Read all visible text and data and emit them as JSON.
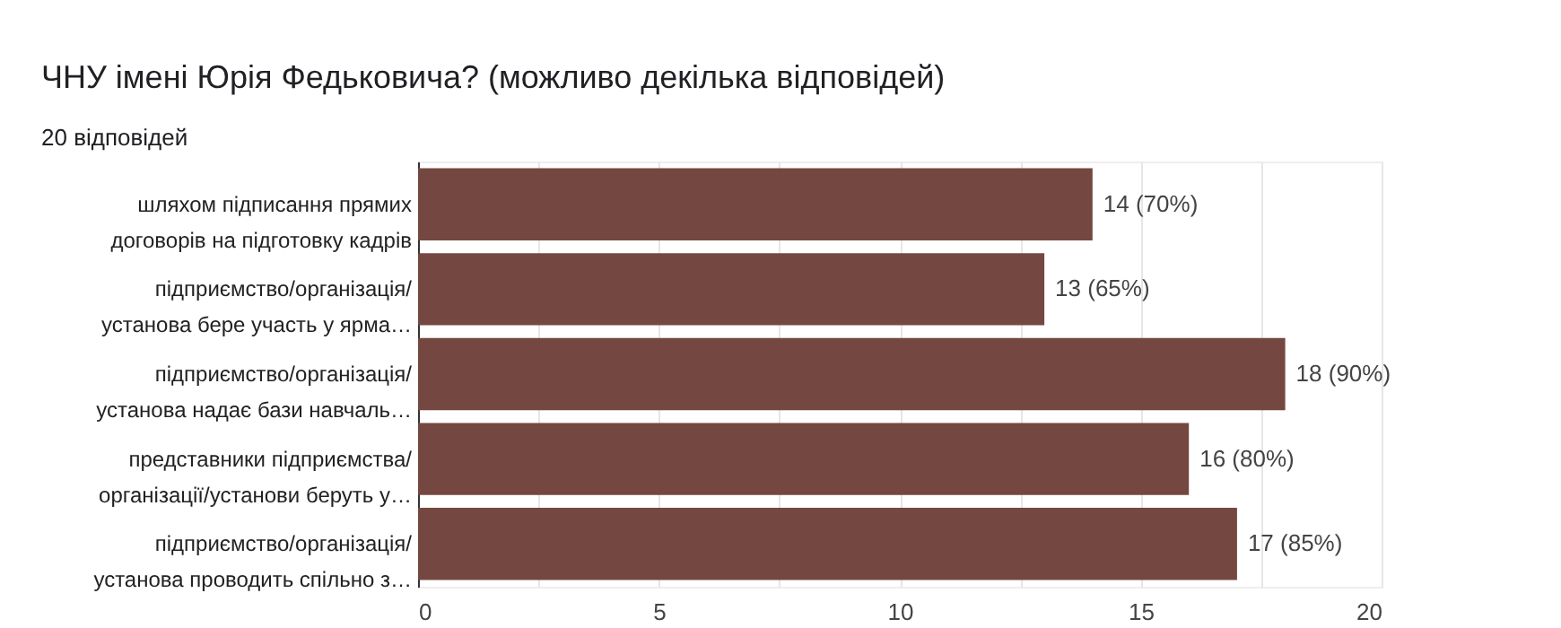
{
  "chart_data": {
    "type": "bar",
    "orientation": "horizontal",
    "title": "ЧНУ імені Юрія Федьковича? (можливо декілька відповідей)",
    "subtitle": "20 відповідей",
    "categories": [
      "шляхом підписання прямих договорів на підготовку кадрів",
      "підприємство/організація/ установа бере участь у ярма…",
      "підприємство/організація/ установа надає бази навчаль…",
      "представники підприємства/ організації/установи беруть у…",
      "підприємство/організація/ установа проводить спільно з…"
    ],
    "values": [
      14,
      13,
      18,
      16,
      17
    ],
    "value_labels": [
      "14 (70%)",
      "13 (65%)",
      "18 (90%)",
      "16 (80%)",
      "17 (85%)"
    ],
    "color": "#744741",
    "xlim": [
      0,
      20
    ],
    "xticks": [
      0,
      {
        "value": 2.5,
        "label": null
      },
      5,
      {
        "value": 7.5,
        "label": null
      },
      10,
      {
        "value": 12.5,
        "label": null
      },
      15,
      {
        "value": 17.5,
        "label": null
      },
      20
    ],
    "grid": true
  }
}
